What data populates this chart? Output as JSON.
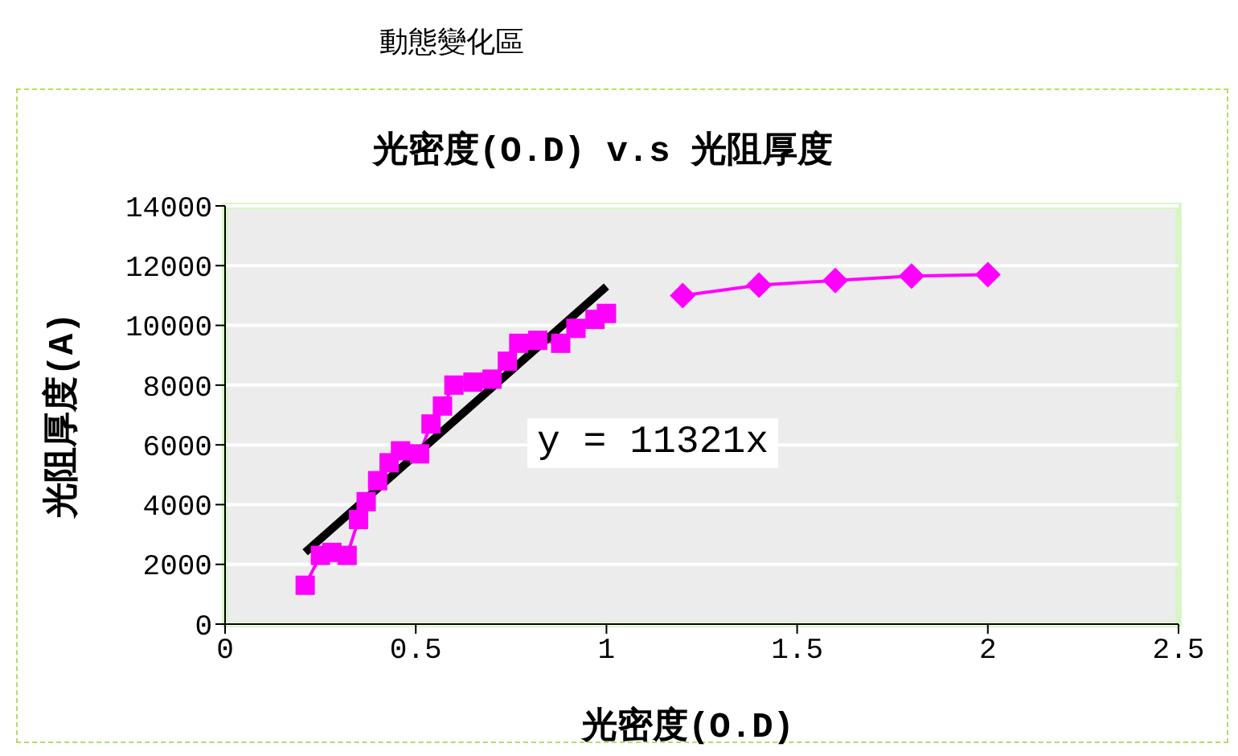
{
  "chart_data": {
    "type": "line",
    "title": "光密度(O.D)  v.s 光阻厚度",
    "xlabel": "光密度(O.D)",
    "ylabel": "光阻厚度(A)",
    "annotations": [
      "動態變化區",
      "y = 11321x"
    ],
    "series": [
      {
        "marker": "square",
        "color": "#ff00ff",
        "x": [
          0.21,
          0.25,
          0.28,
          0.32,
          0.35,
          0.37,
          0.4,
          0.43,
          0.46,
          0.51,
          0.54,
          0.57,
          0.6,
          0.65,
          0.7,
          0.74,
          0.77,
          0.82,
          0.88,
          0.92,
          0.97,
          1.0
        ],
        "values": [
          1300,
          2300,
          2400,
          2300,
          3500,
          4100,
          4800,
          5400,
          5800,
          5700,
          6700,
          7300,
          8000,
          8100,
          8200,
          8800,
          9400,
          9500,
          9400,
          9900,
          10200,
          10400
        ]
      },
      {
        "marker": "diamond",
        "color": "#ff00ff",
        "x": [
          1.2,
          1.4,
          1.6,
          1.8,
          2.0
        ],
        "values": [
          11000,
          11350,
          11500,
          11650,
          11700
        ]
      },
      {
        "marker": "none",
        "color": "#000000",
        "x": [
          0.21,
          1.0
        ],
        "values": [
          2400,
          11300
        ]
      }
    ],
    "xlim": [
      0,
      2.5
    ],
    "xticks": [
      0,
      0.5,
      1,
      1.5,
      2,
      2.5
    ],
    "ylim": [
      0,
      14000
    ],
    "yticks": [
      0,
      2000,
      4000,
      6000,
      8000,
      10000,
      12000,
      14000
    ],
    "grid": "y"
  }
}
